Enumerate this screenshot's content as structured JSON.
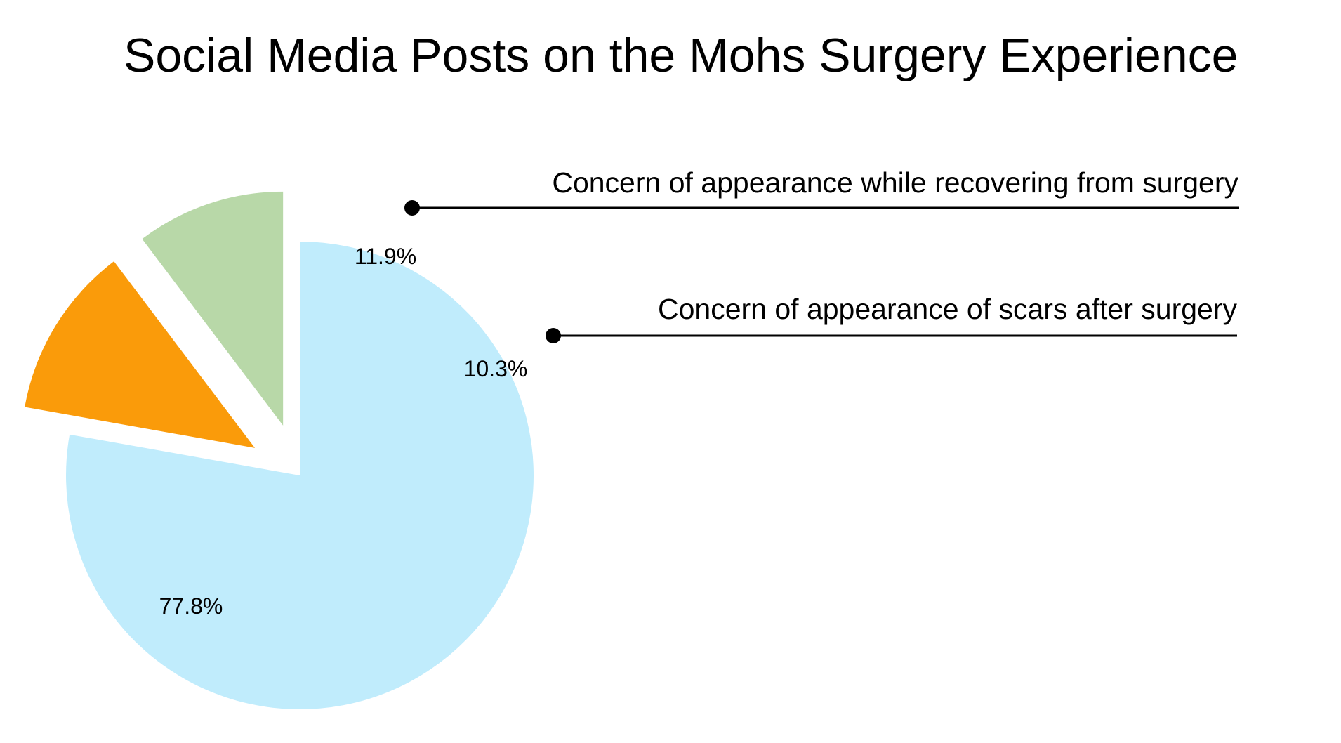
{
  "chart_data": {
    "type": "pie",
    "title": "Social Media Posts on the Mohs Surgery Experience",
    "slices": [
      {
        "label": "",
        "value": 77.8,
        "display": "77.8%",
        "color": "#c0ecfc",
        "exploded": false
      },
      {
        "label": "Concern of appearance while recovering from surgery",
        "value": 11.9,
        "display": "11.9%",
        "color": "#fa9b0a",
        "exploded": true
      },
      {
        "label": "Concern of appearance of scars after surgery",
        "value": 10.3,
        "display": "10.3%",
        "color": "#b8d8a8",
        "exploded": true
      }
    ],
    "start_angle_deg": 90,
    "direction": "clockwise",
    "legend": "none"
  }
}
